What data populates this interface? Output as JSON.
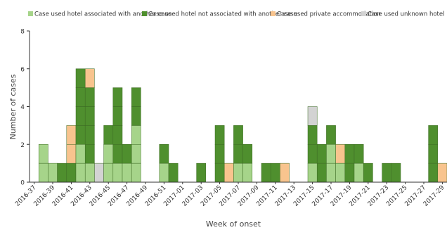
{
  "chart_data": {
    "type": "bar",
    "stacked": true,
    "xlabel": "Week of onset",
    "ylabel": "Number of cases",
    "ylim": [
      0,
      8
    ],
    "yticks": [
      0,
      2,
      4,
      6,
      8
    ],
    "grid": false,
    "legend_position": "top",
    "categories": [
      "2016-37",
      "2016-38",
      "2016-39",
      "2016-40",
      "2016-41",
      "2016-42",
      "2016-43",
      "2016-44",
      "2016-45",
      "2016-46",
      "2016-47",
      "2016-48",
      "2016-49",
      "2016-50",
      "2016-51",
      "2016-52",
      "2017-01",
      "2017-02",
      "2017-03",
      "2017-04",
      "2017-05",
      "2017-06",
      "2017-07",
      "2017-08",
      "2017-09",
      "2017-10",
      "2017-11",
      "2017-12",
      "2017-13",
      "2017-14",
      "2017-15",
      "2017-16",
      "2017-17",
      "2017-18",
      "2017-19",
      "2017-20",
      "2017-21",
      "2017-22",
      "2017-23",
      "2017-24",
      "2017-25",
      "2017-26",
      "2017-27",
      "2017-28",
      "2017-29"
    ],
    "tick_labels": [
      "2016-37",
      "2016-39",
      "2016-41",
      "2016-43",
      "2016-45",
      "2016-47",
      "2016-49",
      "2016-51",
      "2017-01",
      "2017-03",
      "2017-05",
      "2017-07",
      "2017-09",
      "2017-11",
      "2017-13",
      "2017-15",
      "2017-17",
      "2017-19",
      "2017-21",
      "2017-23",
      "2017-25",
      "2017-27",
      "2017-29"
    ],
    "series": [
      {
        "name": "Case used hotel associated with another case",
        "color": "#a6d48a",
        "values": [
          0,
          2,
          1,
          0,
          0,
          2,
          1,
          0,
          2,
          1,
          1,
          3,
          0,
          0,
          1,
          0,
          0,
          0,
          0,
          0,
          0,
          0,
          1,
          1,
          0,
          0,
          0,
          0,
          0,
          0,
          1,
          0,
          2,
          1,
          0,
          1,
          0,
          0,
          0,
          0,
          0,
          0,
          0,
          0,
          0
        ]
      },
      {
        "name": "Case used hotel not associated with another case",
        "color": "#4f8f2e",
        "values": [
          0,
          0,
          0,
          1,
          1,
          4,
          4,
          0,
          1,
          4,
          1,
          2,
          0,
          0,
          1,
          1,
          0,
          0,
          1,
          0,
          3,
          0,
          2,
          1,
          0,
          1,
          1,
          0,
          0,
          0,
          2,
          2,
          1,
          0,
          2,
          1,
          1,
          0,
          1,
          1,
          0,
          0,
          0,
          3,
          0
        ]
      },
      {
        "name": "Case used private accommodation",
        "color": "#f8c48e",
        "values": [
          0,
          0,
          0,
          0,
          2,
          0,
          1,
          0,
          0,
          0,
          0,
          0,
          0,
          0,
          0,
          0,
          0,
          0,
          0,
          0,
          0,
          1,
          0,
          0,
          0,
          0,
          0,
          1,
          0,
          0,
          0,
          0,
          0,
          1,
          0,
          0,
          0,
          0,
          0,
          0,
          0,
          0,
          0,
          0,
          1
        ]
      },
      {
        "name": "Case used unknown hotel",
        "color": "#d3d3d3",
        "values": [
          0,
          0,
          0,
          0,
          0,
          0,
          0,
          1,
          0,
          0,
          0,
          0,
          0,
          0,
          0,
          0,
          0,
          0,
          0,
          0,
          0,
          0,
          0,
          0,
          0,
          0,
          0,
          0,
          0,
          0,
          1,
          0,
          0,
          0,
          0,
          0,
          0,
          0,
          0,
          0,
          0,
          0,
          0,
          0,
          0
        ]
      }
    ]
  }
}
